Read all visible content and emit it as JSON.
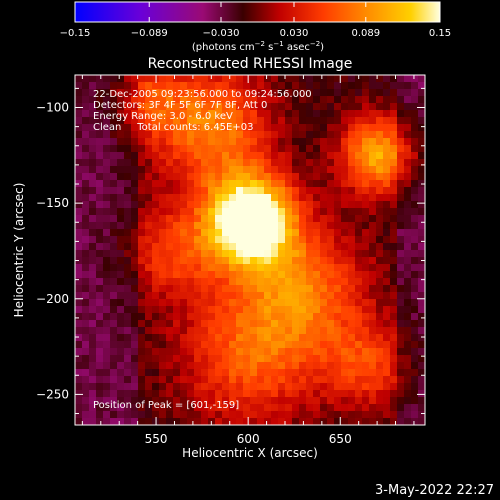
{
  "chart_data": {
    "type": "heatmap",
    "title": "Reconstructed RHESSI Image",
    "xlabel": "Heliocentric X (arcsec)",
    "ylabel": "Heliocentric Y (arcsec)",
    "xlim": [
      506,
      696
    ],
    "ylim": [
      -266,
      -83
    ],
    "x_ticks": [
      {
        "value": 550,
        "label": "550"
      },
      {
        "value": 600,
        "label": "600"
      },
      {
        "value": 650,
        "label": "650"
      }
    ],
    "y_ticks": [
      {
        "value": -100,
        "label": "−100"
      },
      {
        "value": -150,
        "label": "−150"
      },
      {
        "value": -200,
        "label": "−200"
      },
      {
        "value": -250,
        "label": "−250"
      }
    ],
    "annotations": [
      "22-Dec-2005 09:23:56.000 to 09:24:56.000",
      "Detectors: 3F 4F 5F 6F 7F 8F, Att 0",
      "Energy Range: 3.0 - 6.0 keV",
      "Clean     Total counts: 6.45E+03"
    ],
    "peak_label": "Position of Peak = [601,-159]",
    "peak": [
      601,
      -159
    ],
    "colorbar": {
      "min": -0.15,
      "max": 0.15,
      "ticks": [
        {
          "value": -0.15,
          "label": "−0.15"
        },
        {
          "value": -0.089,
          "label": "−0.089"
        },
        {
          "value": -0.03,
          "label": "−0.030"
        },
        {
          "value": 0.03,
          "label": "0.030"
        },
        {
          "value": 0.089,
          "label": "0.089"
        },
        {
          "value": 0.15,
          "label": "0.15"
        }
      ],
      "unit_text": "(photons cm",
      "unit_sup1": "−2",
      "unit_s": " s",
      "unit_sup2": "−1",
      "unit_asec": " asec",
      "unit_sup3": "−2",
      "unit_close": ")",
      "colors": [
        "#0000ff",
        "#6a00d8",
        "#9a0a74",
        "#5a0000",
        "#c00000",
        "#ff3c00",
        "#ff8c00",
        "#ffd000",
        "#ffffe0"
      ]
    },
    "grid": false
  },
  "footer": {
    "timestamp": "3-May-2022 22:27"
  }
}
